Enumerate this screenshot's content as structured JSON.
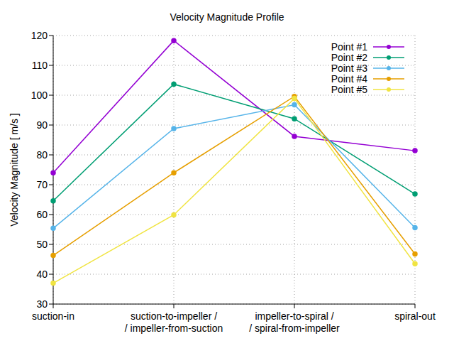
{
  "chart_data": {
    "type": "line",
    "title": "Velocity Magnitude Profile",
    "y_label": "Velocity Magnitude [ m/s ]",
    "categories": [
      "suction-in",
      "suction-to-impeller /\n/ impeller-from-suction",
      "impeller-to-spiral /\n/ spiral-from-impeller",
      "spiral-out"
    ],
    "series": [
      {
        "name": "Point #1",
        "color": "#9400d3",
        "marker": "circle",
        "values": [
          74.0,
          118.3,
          86.2,
          81.4
        ]
      },
      {
        "name": "Point #2",
        "color": "#009e73",
        "marker": "circle",
        "values": [
          64.6,
          103.7,
          92.1,
          66.9
        ]
      },
      {
        "name": "Point #3",
        "color": "#56b4e9",
        "marker": "circle",
        "values": [
          55.4,
          88.8,
          96.8,
          55.6
        ]
      },
      {
        "name": "Point #4",
        "color": "#e69f00",
        "marker": "circle",
        "values": [
          46.3,
          74.0,
          99.6,
          46.8
        ]
      },
      {
        "name": "Point #5",
        "color": "#f0e442",
        "marker": "circle",
        "values": [
          37.0,
          59.9,
          98.9,
          43.5
        ]
      }
    ],
    "ylim": [
      30,
      120
    ],
    "yticks": [
      30,
      40,
      50,
      60,
      70,
      80,
      90,
      100,
      110,
      120
    ],
    "grid": true,
    "legend": "upper right"
  }
}
